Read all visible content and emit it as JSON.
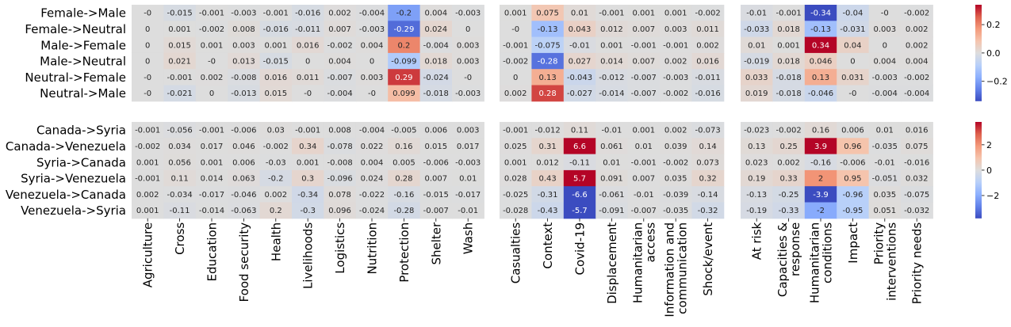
{
  "chart_data": {
    "type": "heatmap",
    "colormap": "coolwarm",
    "row_groups": [
      {
        "rows": [
          "Female->Male",
          "Female->Neutral",
          "Male->Female",
          "Male->Neutral",
          "Neutral->Female",
          "Neutral->Male"
        ],
        "colorbar": {
          "vmin": -0.34,
          "vmax": 0.34,
          "ticks": [
            0.2,
            0.0,
            -0.2
          ],
          "tick_labels": [
            "0.2",
            "0.0",
            "−0.2"
          ]
        },
        "panels": [
          [
            [
              "-0",
              "-0.015",
              "-0.001",
              "-0.003",
              "-0.001",
              "-0.016",
              "0.002",
              "-0.004",
              "-0.2",
              "0.004",
              "-0.003"
            ],
            [
              "0",
              "0.001",
              "-0.002",
              "0.008",
              "-0.016",
              "-0.011",
              "0.007",
              "-0.003",
              "-0.29",
              "0.024",
              "0"
            ],
            [
              "0",
              "0.015",
              "0.001",
              "0.003",
              "0.001",
              "0.016",
              "-0.002",
              "0.004",
              "0.2",
              "-0.004",
              "0.003"
            ],
            [
              "0",
              "0.021",
              "-0",
              "0.013",
              "-0.015",
              "0",
              "0.004",
              "0",
              "-0.099",
              "0.018",
              "0.003"
            ],
            [
              "-0",
              "-0.001",
              "0.002",
              "-0.008",
              "0.016",
              "0.011",
              "-0.007",
              "0.003",
              "0.29",
              "-0.024",
              "-0"
            ],
            [
              "-0",
              "-0.021",
              "0",
              "-0.013",
              "0.015",
              "-0",
              "-0.004",
              "-0",
              "0.099",
              "-0.018",
              "-0.003"
            ]
          ],
          [
            [
              "0.001",
              "0.075",
              "0.01",
              "-0.001",
              "0.001",
              "0.001",
              "-0.002"
            ],
            [
              "-0",
              "-0.13",
              "0.043",
              "0.012",
              "0.007",
              "0.003",
              "0.011"
            ],
            [
              "-0.001",
              "-0.075",
              "-0.01",
              "0.001",
              "-0.001",
              "-0.001",
              "0.002"
            ],
            [
              "-0.002",
              "-0.28",
              "0.027",
              "0.014",
              "0.007",
              "0.002",
              "0.016"
            ],
            [
              "0",
              "0.13",
              "-0.043",
              "-0.012",
              "-0.007",
              "-0.003",
              "-0.011"
            ],
            [
              "0.002",
              "0.28",
              "-0.027",
              "-0.014",
              "-0.007",
              "-0.002",
              "-0.016"
            ]
          ],
          [
            [
              "-0.01",
              "-0.001",
              "-0.34",
              "-0.04",
              "-0",
              "-0.002"
            ],
            [
              "-0.033",
              "0.018",
              "-0.13",
              "-0.031",
              "0.003",
              "0.002"
            ],
            [
              "0.01",
              "0.001",
              "0.34",
              "0.04",
              "0",
              "0.002"
            ],
            [
              "-0.019",
              "0.018",
              "0.046",
              "0",
              "0.004",
              "0.004"
            ],
            [
              "0.033",
              "-0.018",
              "0.13",
              "0.031",
              "-0.003",
              "-0.002"
            ],
            [
              "0.019",
              "-0.018",
              "-0.046",
              "-0",
              "-0.004",
              "-0.004"
            ]
          ]
        ]
      },
      {
        "rows": [
          "Canada->Syria",
          "Canada->Venezuela",
          "Syria->Canada",
          "Syria->Venezuela",
          "Venezuela->Canada",
          "Venezuela->Syria"
        ],
        "colorbar": {
          "vmin": -3.8,
          "vmax": 3.8,
          "ticks": [
            2,
            0,
            -2
          ],
          "tick_labels": [
            "2",
            "0",
            "−2"
          ]
        },
        "panels": [
          [
            [
              "-0.001",
              "-0.056",
              "-0.001",
              "-0.006",
              "0.03",
              "-0.001",
              "0.008",
              "-0.004",
              "-0.005",
              "0.006",
              "0.003"
            ],
            [
              "-0.002",
              "0.034",
              "0.017",
              "0.046",
              "-0.002",
              "0.34",
              "-0.078",
              "0.022",
              "0.16",
              "0.015",
              "0.017"
            ],
            [
              "0.001",
              "0.056",
              "0.001",
              "0.006",
              "-0.03",
              "0.001",
              "-0.008",
              "0.004",
              "0.005",
              "-0.006",
              "-0.003"
            ],
            [
              "-0.001",
              "0.11",
              "0.014",
              "0.063",
              "-0.2",
              "0.3",
              "-0.096",
              "0.024",
              "0.28",
              "0.007",
              "0.01"
            ],
            [
              "0.002",
              "-0.034",
              "-0.017",
              "-0.046",
              "0.002",
              "-0.34",
              "0.078",
              "-0.022",
              "-0.16",
              "-0.015",
              "-0.017"
            ],
            [
              "0.001",
              "-0.11",
              "-0.014",
              "-0.063",
              "0.2",
              "-0.3",
              "0.096",
              "-0.024",
              "-0.28",
              "-0.007",
              "-0.01"
            ]
          ],
          [
            [
              "-0.001",
              "-0.012",
              "0.11",
              "-0.01",
              "0.001",
              "0.002",
              "-0.073"
            ],
            [
              "0.025",
              "0.31",
              "6.6",
              "0.061",
              "0.01",
              "0.039",
              "0.14"
            ],
            [
              "0.001",
              "0.012",
              "-0.11",
              "0.01",
              "-0.001",
              "-0.002",
              "0.073"
            ],
            [
              "0.028",
              "0.43",
              "5.7",
              "0.091",
              "0.007",
              "0.035",
              "0.32"
            ],
            [
              "-0.025",
              "-0.31",
              "-6.6",
              "-0.061",
              "-0.01",
              "-0.039",
              "-0.14"
            ],
            [
              "-0.028",
              "-0.43",
              "-5.7",
              "-0.091",
              "-0.007",
              "-0.035",
              "-0.32"
            ]
          ],
          [
            [
              "-0.023",
              "-0.002",
              "0.16",
              "0.006",
              "0.01",
              "0.016"
            ],
            [
              "0.13",
              "0.25",
              "3.9",
              "0.96",
              "-0.035",
              "0.075"
            ],
            [
              "0.023",
              "0.002",
              "-0.16",
              "-0.006",
              "-0.01",
              "-0.016"
            ],
            [
              "0.19",
              "0.33",
              "2",
              "0.95",
              "-0.051",
              "0.032"
            ],
            [
              "-0.13",
              "-0.25",
              "-3.9",
              "-0.96",
              "0.035",
              "-0.075"
            ],
            [
              "-0.19",
              "-0.33",
              "-2",
              "-0.95",
              "0.051",
              "-0.032"
            ]
          ]
        ]
      }
    ],
    "column_groups": [
      [
        "Agriculture",
        "Cross",
        "Education",
        "Food security",
        "Health",
        "Livelihoods",
        "Logistics",
        "Nutrition",
        "Protection",
        "Shelter",
        "Wash"
      ],
      [
        "Casualties",
        "Context",
        "Covid-19",
        "Displacement",
        "Humanitarian access",
        "Information and communication",
        "Shock/event"
      ],
      [
        "At risk",
        "Capacities & response",
        "Humanitarian conditions",
        "Impact",
        "Priority interventions",
        "Priority needs"
      ]
    ]
  }
}
